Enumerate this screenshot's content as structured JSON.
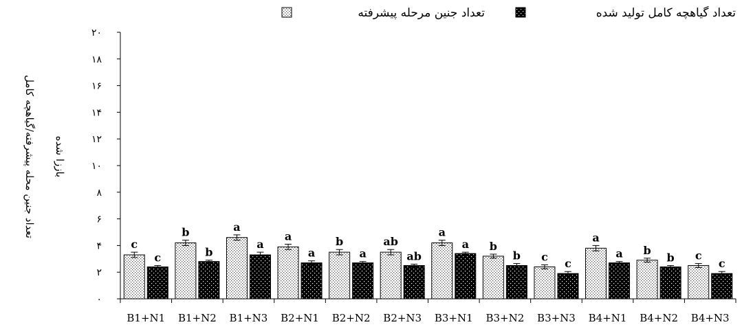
{
  "chart_data": {
    "type": "bar",
    "title": "",
    "ylabel_lines": [
      "تعداد جنین محله پیشرفته/گیاهچه کامل",
      "باززا شده"
    ],
    "xlabel": "",
    "ylim": [
      0,
      20
    ],
    "ytick_values": [
      0,
      2,
      4,
      6,
      8,
      10,
      12,
      14,
      16,
      18,
      20
    ],
    "ytick_labels": [
      "۰",
      "۲",
      "۴",
      "۶",
      "۸",
      "۱۰",
      "۱۲",
      "۱۴",
      "۱۶",
      "۱۸",
      "۲۰"
    ],
    "grid": false,
    "legend_position": "top",
    "categories": [
      "B1+N1",
      "B1+N2",
      "B1+N3",
      "B2+N1",
      "B2+N2",
      "B2+N3",
      "B3+N1",
      "B3+N2",
      "B3+N3",
      "B4+N1",
      "B4+N2",
      "B4+N3"
    ],
    "series": [
      {
        "name": "تعداد جنین مرحله پیشرفته",
        "pattern": "dotted-light",
        "values": [
          3.3,
          4.2,
          4.6,
          3.9,
          3.5,
          3.5,
          4.2,
          3.2,
          2.4,
          3.8,
          2.9,
          2.5
        ],
        "errors": [
          0.2,
          0.2,
          0.2,
          0.2,
          0.2,
          0.2,
          0.2,
          0.15,
          0.15,
          0.2,
          0.15,
          0.15
        ],
        "labels": [
          "c",
          "b",
          "a",
          "a",
          "b",
          "ab",
          "a",
          "b",
          "c",
          "a",
          "b",
          "c"
        ]
      },
      {
        "name": "تعداد گیاهچه کامل تولید شده",
        "pattern": "dotted-dark",
        "values": [
          2.4,
          2.8,
          3.3,
          2.7,
          2.7,
          2.5,
          3.4,
          2.5,
          1.9,
          2.7,
          2.4,
          1.9
        ],
        "errors": [
          0.1,
          0.1,
          0.2,
          0.15,
          0.1,
          0.1,
          0.1,
          0.15,
          0.15,
          0.1,
          0.1,
          0.15
        ],
        "labels": [
          "c",
          "b",
          "a",
          "a",
          "a",
          "ab",
          "a",
          "b",
          "c",
          "a",
          "b",
          "c"
        ]
      }
    ],
    "colors": {
      "axis": "#000000",
      "light_fill": "#ffffff",
      "light_dot": "#555555",
      "dark_fill": "#000000",
      "dark_dot": "#ffffff"
    }
  }
}
